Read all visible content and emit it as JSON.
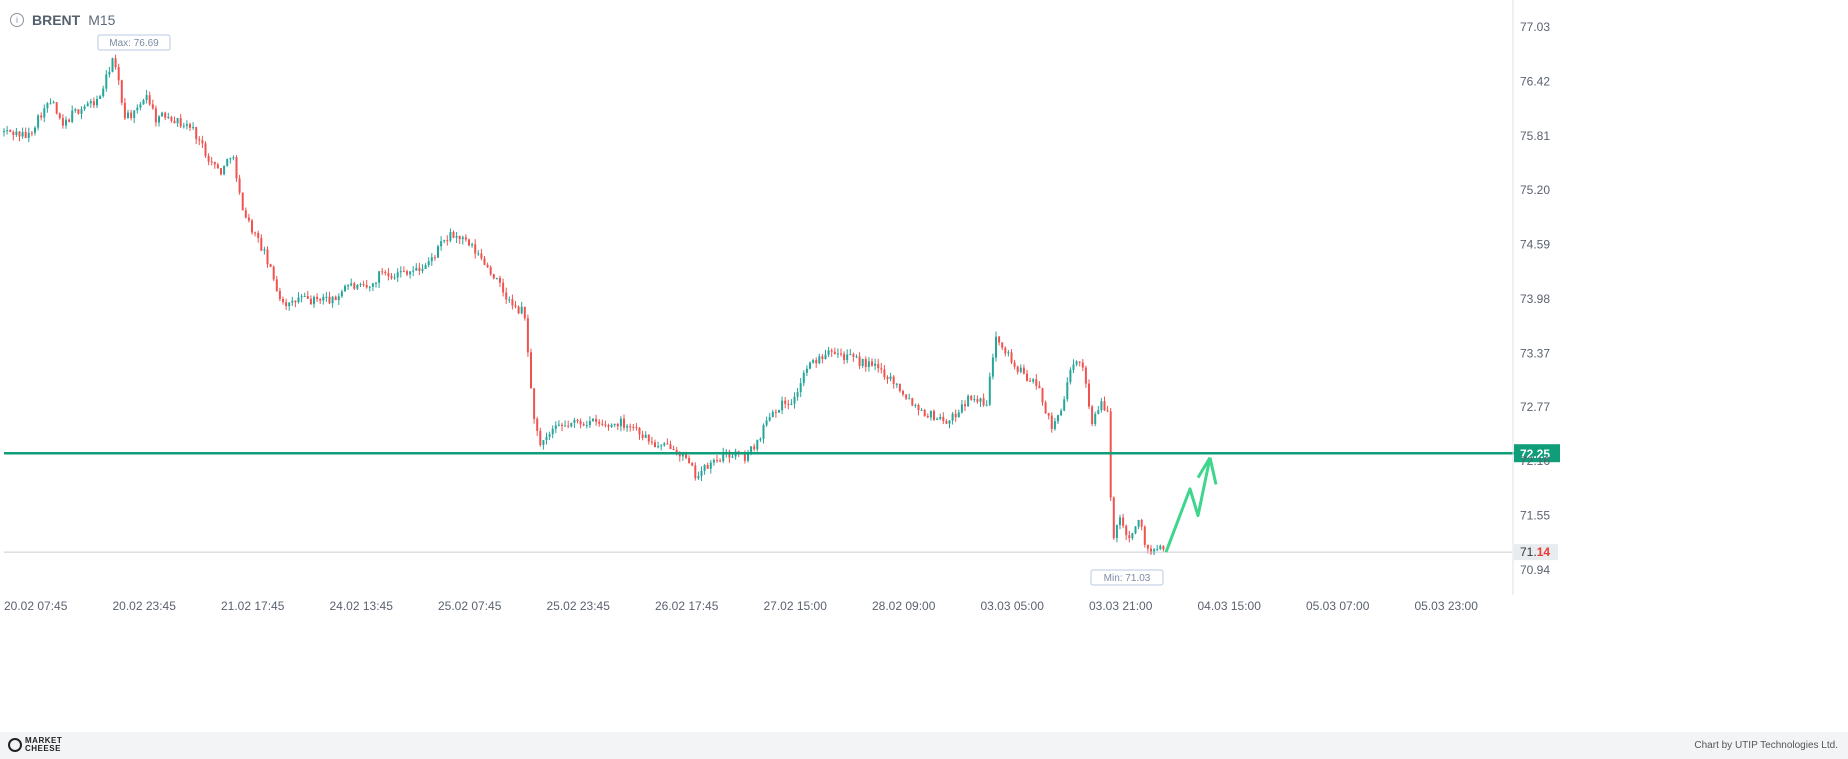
{
  "header": {
    "symbol": "BRENT",
    "timeframe": "M15"
  },
  "chart_data": {
    "type": "candlestick",
    "symbol": "BRENT",
    "timeframe": "M15",
    "x_ticks": [
      "20.02 07:45",
      "20.02 23:45",
      "21.02 17:45",
      "24.02 13:45",
      "25.02 07:45",
      "25.02 23:45",
      "26.02 17:45",
      "27.02 15:00",
      "28.02 09:00",
      "03.03 05:00",
      "03.03 21:00",
      "04.03 15:00",
      "05.03 07:00",
      "05.03 23:00"
    ],
    "y_ticks": [
      77.03,
      76.42,
      75.81,
      75.2,
      74.59,
      73.98,
      73.37,
      72.77,
      72.16,
      71.55,
      70.94
    ],
    "ylim": [
      70.7,
      77.25
    ],
    "price_path": [
      [
        0,
        75.86
      ],
      [
        12,
        75.85
      ],
      [
        28,
        75.8
      ],
      [
        40,
        76.05
      ],
      [
        52,
        76.2
      ],
      [
        62,
        75.9
      ],
      [
        72,
        76.05
      ],
      [
        85,
        76.15
      ],
      [
        98,
        76.2
      ],
      [
        108,
        76.5
      ],
      [
        112,
        76.69
      ],
      [
        118,
        76.45
      ],
      [
        124,
        76.05
      ],
      [
        136,
        76.05
      ],
      [
        146,
        76.3
      ],
      [
        156,
        76.0
      ],
      [
        168,
        76.05
      ],
      [
        180,
        75.95
      ],
      [
        192,
        75.9
      ],
      [
        202,
        75.7
      ],
      [
        212,
        75.5
      ],
      [
        222,
        75.4
      ],
      [
        232,
        75.65
      ],
      [
        238,
        75.2
      ],
      [
        246,
        74.9
      ],
      [
        255,
        74.7
      ],
      [
        264,
        74.5
      ],
      [
        272,
        74.25
      ],
      [
        280,
        74.0
      ],
      [
        290,
        73.9
      ],
      [
        300,
        74.0
      ],
      [
        312,
        73.95
      ],
      [
        322,
        74.0
      ],
      [
        334,
        73.95
      ],
      [
        346,
        74.15
      ],
      [
        358,
        74.1
      ],
      [
        370,
        74.1
      ],
      [
        382,
        74.3
      ],
      [
        394,
        74.25
      ],
      [
        406,
        74.3
      ],
      [
        418,
        74.3
      ],
      [
        430,
        74.4
      ],
      [
        442,
        74.6
      ],
      [
        452,
        74.7
      ],
      [
        462,
        74.65
      ],
      [
        472,
        74.55
      ],
      [
        484,
        74.4
      ],
      [
        496,
        74.2
      ],
      [
        506,
        74.0
      ],
      [
        516,
        73.85
      ],
      [
        524,
        73.85
      ],
      [
        528,
        73.4
      ],
      [
        532,
        72.8
      ],
      [
        540,
        72.3
      ],
      [
        552,
        72.5
      ],
      [
        564,
        72.55
      ],
      [
        578,
        72.6
      ],
      [
        592,
        72.6
      ],
      [
        606,
        72.55
      ],
      [
        620,
        72.6
      ],
      [
        634,
        72.55
      ],
      [
        648,
        72.4
      ],
      [
        660,
        72.3
      ],
      [
        672,
        72.35
      ],
      [
        684,
        72.2
      ],
      [
        696,
        72.0
      ],
      [
        708,
        72.1
      ],
      [
        720,
        72.2
      ],
      [
        734,
        72.25
      ],
      [
        746,
        72.2
      ],
      [
        758,
        72.4
      ],
      [
        770,
        72.7
      ],
      [
        782,
        72.8
      ],
      [
        794,
        72.85
      ],
      [
        806,
        73.2
      ],
      [
        818,
        73.3
      ],
      [
        830,
        73.45
      ],
      [
        842,
        73.35
      ],
      [
        854,
        73.3
      ],
      [
        866,
        73.25
      ],
      [
        878,
        73.2
      ],
      [
        890,
        73.1
      ],
      [
        902,
        72.95
      ],
      [
        914,
        72.8
      ],
      [
        926,
        72.7
      ],
      [
        938,
        72.65
      ],
      [
        950,
        72.6
      ],
      [
        962,
        72.8
      ],
      [
        974,
        72.9
      ],
      [
        986,
        72.75
      ],
      [
        996,
        73.6
      ],
      [
        1006,
        73.4
      ],
      [
        1016,
        73.2
      ],
      [
        1028,
        73.1
      ],
      [
        1040,
        72.95
      ],
      [
        1052,
        72.5
      ],
      [
        1062,
        72.8
      ],
      [
        1072,
        73.2
      ],
      [
        1082,
        73.3
      ],
      [
        1092,
        72.6
      ],
      [
        1102,
        72.8
      ],
      [
        1108,
        72.7
      ],
      [
        1112,
        71.3
      ],
      [
        1120,
        71.5
      ],
      [
        1130,
        71.3
      ],
      [
        1140,
        71.5
      ],
      [
        1146,
        71.2
      ],
      [
        1152,
        71.12
      ],
      [
        1158,
        71.18
      ],
      [
        1166,
        71.14
      ]
    ],
    "horizontal_line": {
      "value": 72.25,
      "label": "72.25",
      "color": "#0f9d7a"
    },
    "current_price": {
      "value": 71.14,
      "label_prefix": "71.",
      "label_suffix": "14"
    },
    "max_label": "Max: 76.69",
    "min_label": "Min: 71.03",
    "projection_path": [
      [
        1166,
        71.14
      ],
      [
        1190,
        71.85
      ],
      [
        1198,
        71.55
      ],
      [
        1210,
        72.2
      ],
      [
        1216,
        71.9
      ]
    ],
    "colors": {
      "up": "#26a69a",
      "down": "#ef5350",
      "line": "#0f9d7a",
      "projection": "#3dd68c",
      "grid": "#eef0f3",
      "axis_text": "#5a6270"
    },
    "grid": false
  },
  "footer": {
    "brand_top": "MARKET",
    "brand_bottom": "CHEESE",
    "credit": "Chart by UTIP Technologies Ltd."
  }
}
